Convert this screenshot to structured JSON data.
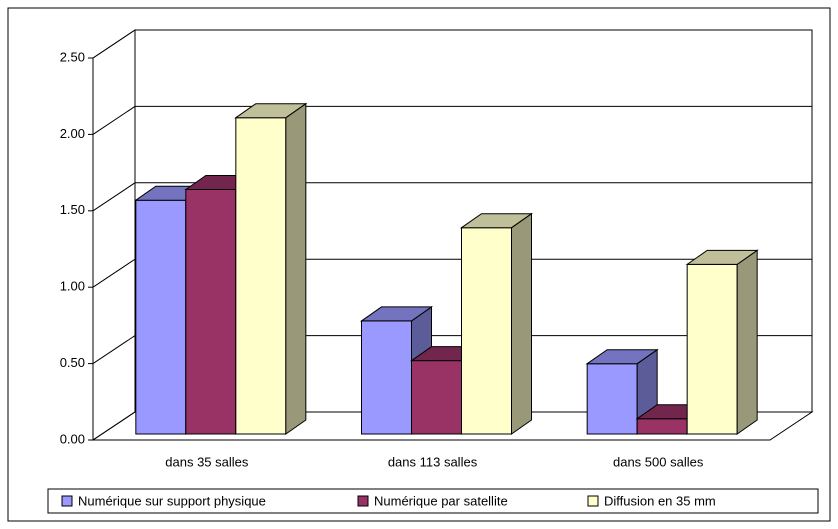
{
  "chart_data": {
    "type": "bar3d",
    "categories": [
      "dans 35 salles",
      "dans 113 salles",
      "dans 500 salles"
    ],
    "series": [
      {
        "name": "Numérique sur support physique",
        "color": "#9999ff",
        "values": [
          1.53,
          0.74,
          0.46
        ]
      },
      {
        "name": "Numérique par satellite",
        "color": "#993366",
        "values": [
          1.6,
          0.48,
          0.1
        ]
      },
      {
        "name": "Diffusion en 35 mm",
        "color": "#ffffcc",
        "values": [
          2.07,
          1.35,
          1.11
        ]
      }
    ],
    "ylim": [
      0,
      2.5
    ],
    "yticks": [
      {
        "value": 0,
        "label": "0.00"
      },
      {
        "value": 0.5,
        "label": "0.50"
      },
      {
        "value": 1,
        "label": "1.00"
      },
      {
        "value": 1.5,
        "label": "1.50"
      },
      {
        "value": 2,
        "label": "2.00"
      },
      {
        "value": 2.5,
        "label": "2.50"
      }
    ],
    "grid": true,
    "legend": "bottom"
  }
}
